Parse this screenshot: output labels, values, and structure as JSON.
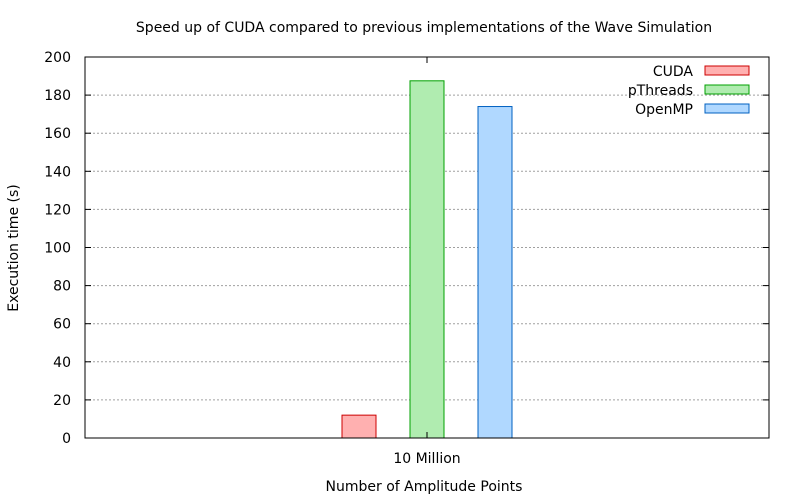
{
  "chart_data": {
    "type": "bar",
    "title": "Speed up of CUDA compared to previous implementations of the Wave Simulation",
    "xlabel": "Number of Amplitude Points",
    "ylabel": "Execution time (s)",
    "categories": [
      "10 Million"
    ],
    "ylim": [
      0,
      200
    ],
    "yticks": [
      0,
      20,
      40,
      60,
      80,
      100,
      120,
      140,
      160,
      180,
      200
    ],
    "grid": true,
    "legend_position": "top-right",
    "series": [
      {
        "name": "CUDA",
        "values": [
          12
        ],
        "fill": "#ffb0b0",
        "stroke": "#cc0000"
      },
      {
        "name": "pThreads",
        "values": [
          187.5
        ],
        "fill": "#b0ecb0",
        "stroke": "#00a000"
      },
      {
        "name": "OpenMP",
        "values": [
          174
        ],
        "fill": "#b0d8ff",
        "stroke": "#0060c0"
      }
    ]
  }
}
